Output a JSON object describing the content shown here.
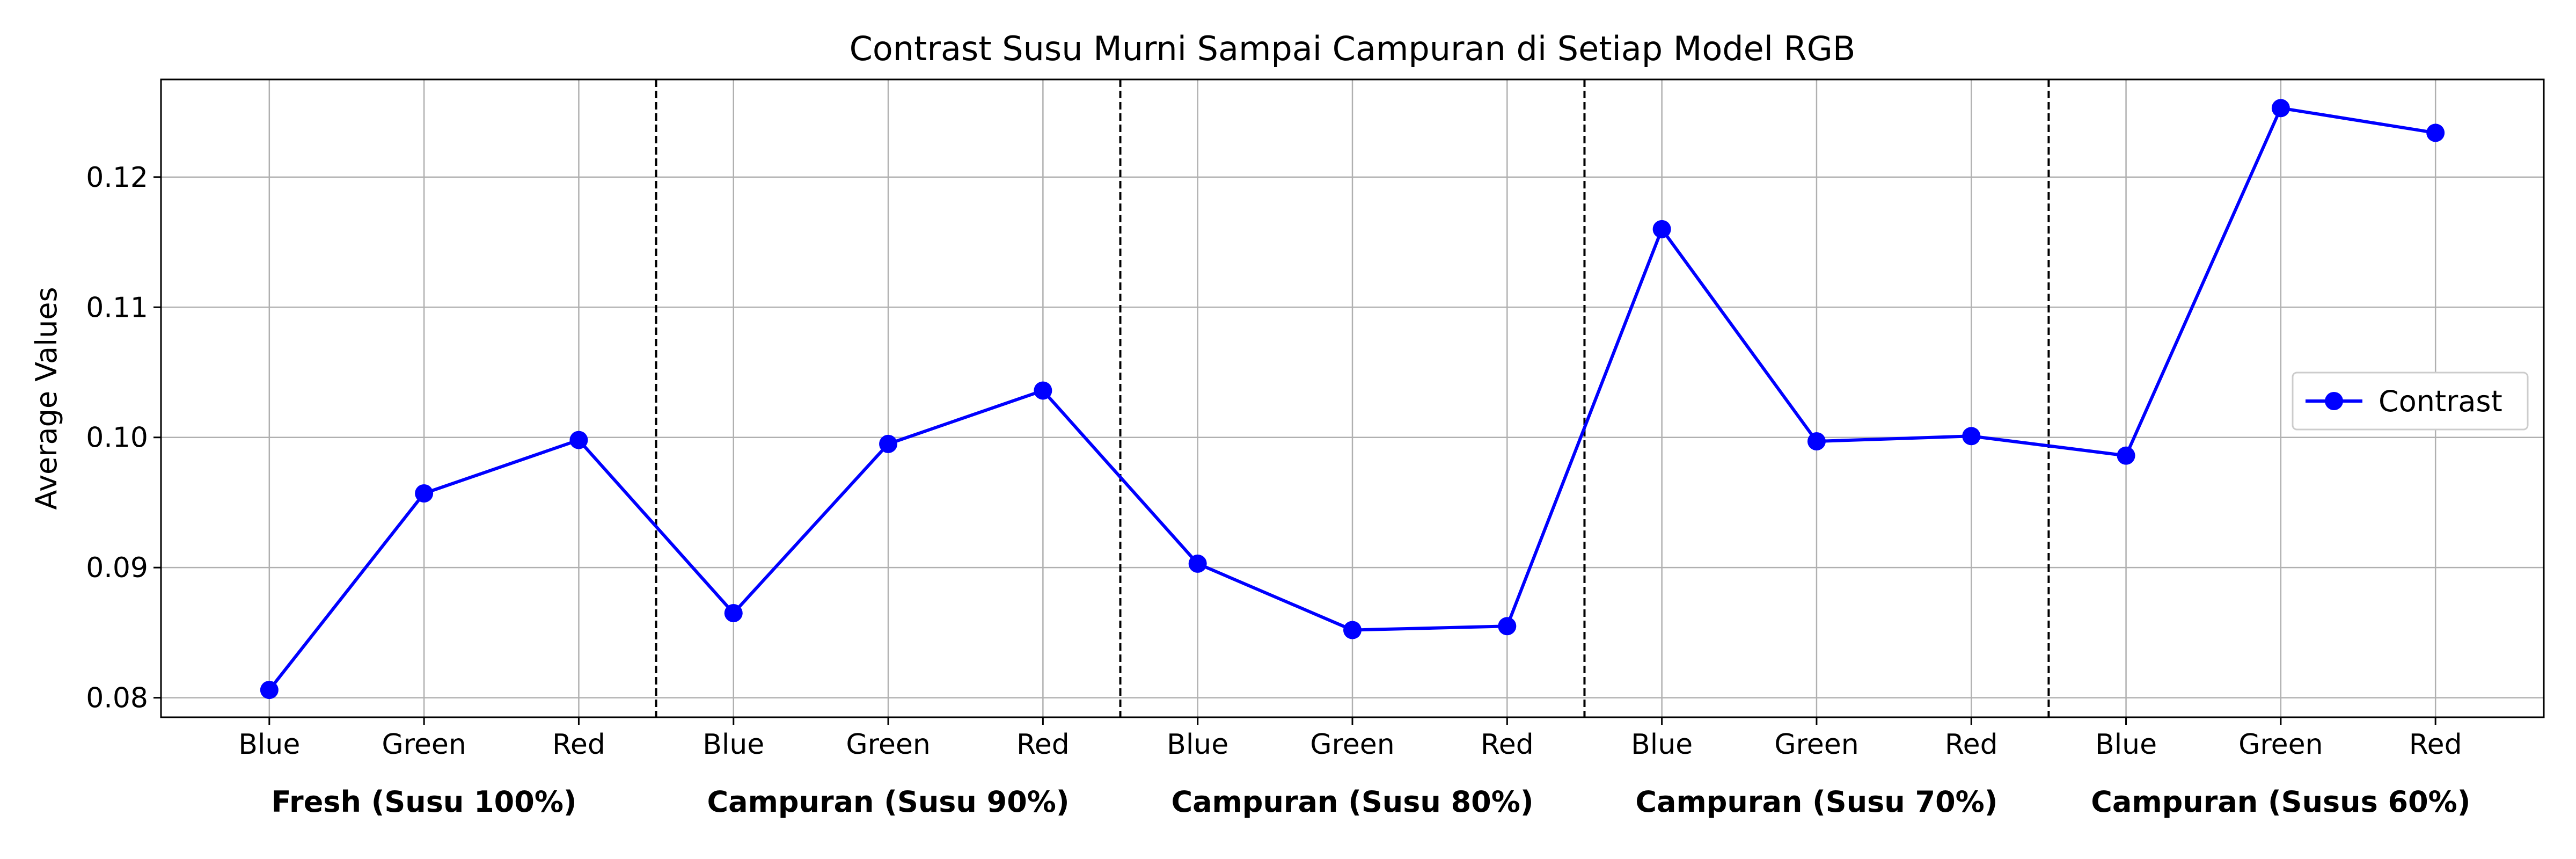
{
  "chart_data": {
    "type": "line",
    "title": "Contrast Susu Murni Sampai Campuran di Setiap Model RGB",
    "xlabel": "",
    "ylabel": "Average Values",
    "categories": [
      "Blue",
      "Green",
      "Red",
      "Blue",
      "Green",
      "Red",
      "Blue",
      "Green",
      "Red",
      "Blue",
      "Green",
      "Red",
      "Blue",
      "Green",
      "Red"
    ],
    "groups": [
      "Fresh (Susu 100%)",
      "Campuran (Susu 90%)",
      "Campuran (Susu 80%)",
      "Campuran (Susu 70%)",
      "Campuran (Susus 60%)"
    ],
    "series": [
      {
        "name": "Contrast",
        "color": "#0000ff",
        "values": [
          0.0806,
          0.0957,
          0.0998,
          0.0865,
          0.0995,
          0.1036,
          0.0903,
          0.0852,
          0.0855,
          0.116,
          0.0997,
          0.1001,
          0.0986,
          0.1253,
          0.1234
        ]
      }
    ],
    "ylim": [
      0.0785,
      0.1275
    ],
    "yticks": [
      0.08,
      0.09,
      0.1,
      0.11,
      0.12
    ],
    "ytick_labels": [
      "0.08",
      "0.09",
      "0.10",
      "0.11",
      "0.12"
    ],
    "grid": true,
    "legend_position": "right",
    "group_separators": "dashed"
  }
}
